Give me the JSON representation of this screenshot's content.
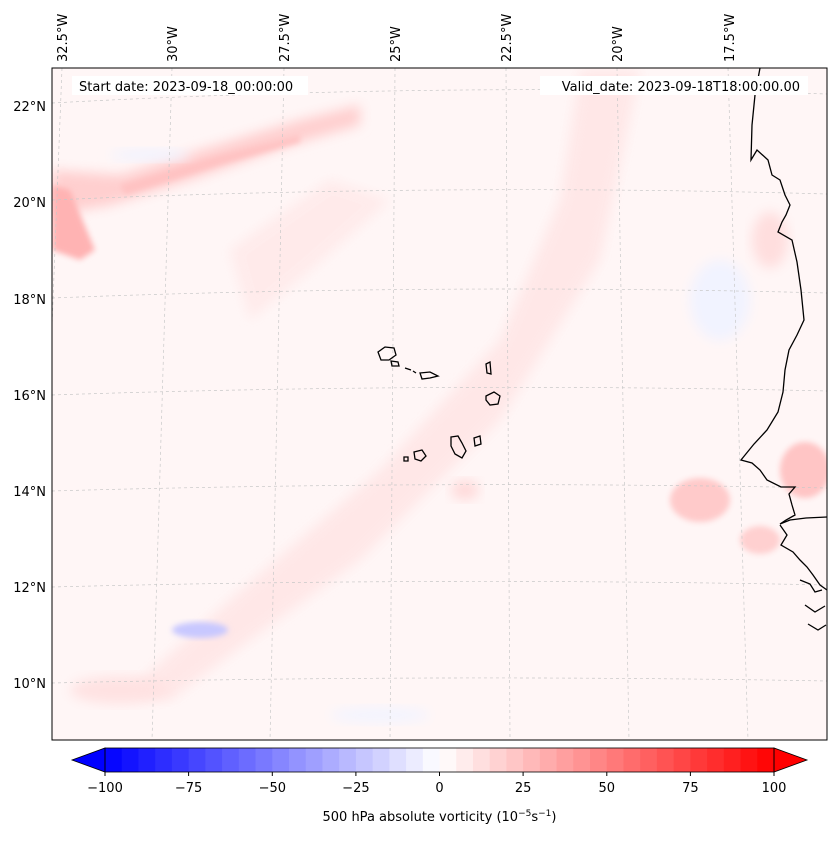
{
  "map": {
    "start_label": "Start date: 2023-09-18_00:00:00",
    "valid_label": "Valid_date: 2023-09-18T18:00:00.00",
    "lon_labels": [
      "32.5°W",
      "30°W",
      "27.5°W",
      "25°W",
      "22.5°W",
      "20°W",
      "17.5°W"
    ],
    "lat_labels": [
      "22°N",
      "20°N",
      "18°N",
      "16°N",
      "14°N",
      "12°N",
      "10°N"
    ]
  },
  "colorbar": {
    "ticks": [
      "−100",
      "−75",
      "−50",
      "−25",
      "0",
      "25",
      "50",
      "75",
      "100"
    ],
    "label": "500 hPa absolute vorticity (10",
    "label_exp1": "−5",
    "label_mid": "s",
    "label_exp2": "−1",
    "label_end": ")",
    "vmin": -100,
    "vmax": 100,
    "step": 5,
    "colors": {
      "min": "#0000ff",
      "mid": "#ffffff",
      "max": "#ff0000"
    }
  }
}
